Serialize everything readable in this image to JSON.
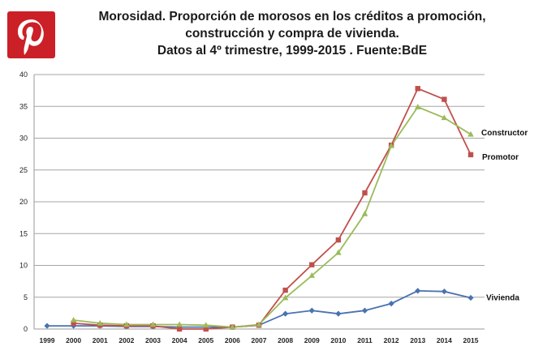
{
  "logo": {
    "label": "P"
  },
  "chart_data": {
    "type": "line",
    "title": "Morosidad. Proporción de  morosos en los créditos a  promoción, construcción y compra de vivienda. Datos al 4º trimestre, 1999-2015 . Fuente:BdE",
    "title_lines": [
      "Morosidad. Proporción de  morosos en los créditos a  promoción,",
      "construcción y compra de vivienda.",
      "Datos al 4º trimestre, 1999-2015 . Fuente:BdE"
    ],
    "xlabel": "",
    "ylabel": "",
    "ylim": [
      0,
      40
    ],
    "yticks": [
      0,
      5,
      10,
      15,
      20,
      25,
      30,
      35,
      40
    ],
    "grid": true,
    "categories": [
      "1999",
      "2000",
      "2001",
      "2002",
      "2003",
      "2004",
      "2005",
      "2006",
      "2007",
      "2008",
      "2009",
      "2010",
      "2011",
      "2012",
      "2013",
      "2014",
      "2015"
    ],
    "series": [
      {
        "name": "Vivienda",
        "color": "#4a72b0",
        "marker": "diamond",
        "values": [
          0.5,
          0.5,
          0.5,
          0.4,
          0.4,
          0.3,
          0.3,
          0.3,
          0.6,
          2.4,
          2.9,
          2.4,
          2.9,
          4.0,
          6.0,
          5.9,
          4.9
        ]
      },
      {
        "name": "Promotor",
        "color": "#c0504d",
        "marker": "square",
        "values": [
          null,
          0.9,
          0.6,
          0.5,
          0.5,
          0.0,
          0.0,
          0.3,
          0.6,
          6.1,
          10.1,
          14.0,
          21.4,
          28.9,
          37.8,
          36.1,
          27.4
        ]
      },
      {
        "name": "Constructor",
        "color": "#9bbb59",
        "marker": "triangle",
        "values": [
          null,
          1.4,
          0.9,
          0.7,
          0.7,
          0.7,
          0.6,
          0.3,
          0.7,
          4.9,
          8.4,
          12.0,
          18.1,
          28.8,
          34.9,
          33.2,
          30.6
        ]
      }
    ]
  }
}
